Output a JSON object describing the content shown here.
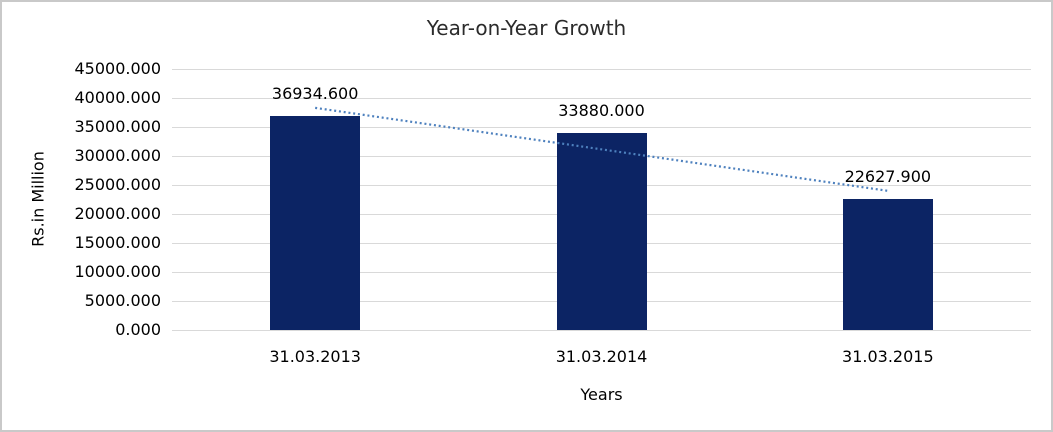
{
  "chart_data": {
    "type": "bar",
    "title": "Year-on-Year Growth",
    "xlabel": "Years",
    "ylabel": "Rs.in Million",
    "categories": [
      "31.03.2013",
      "31.03.2014",
      "31.03.2015"
    ],
    "values": [
      36934.6,
      33880.0,
      22627.9
    ],
    "data_labels": [
      "36934.600",
      "33880.000",
      "22627.900"
    ],
    "ylim": [
      0,
      45000
    ],
    "ytick_step": 5000,
    "ytick_labels": [
      "45000.000",
      "40000.000",
      "35000.000",
      "30000.000",
      "25000.000",
      "20000.000",
      "15000.000",
      "10000.000",
      "5000.000",
      "0.000"
    ],
    "grid": true,
    "legend": "none",
    "trendline": {
      "type": "linear",
      "style": "dotted"
    },
    "colors": {
      "bar": "#0c2464",
      "trendline": "#4e81be",
      "gridline": "#d9d9d9",
      "frame_border": "#c9c9c9",
      "text": "#000000",
      "title_text": "#2b2b2b"
    }
  }
}
